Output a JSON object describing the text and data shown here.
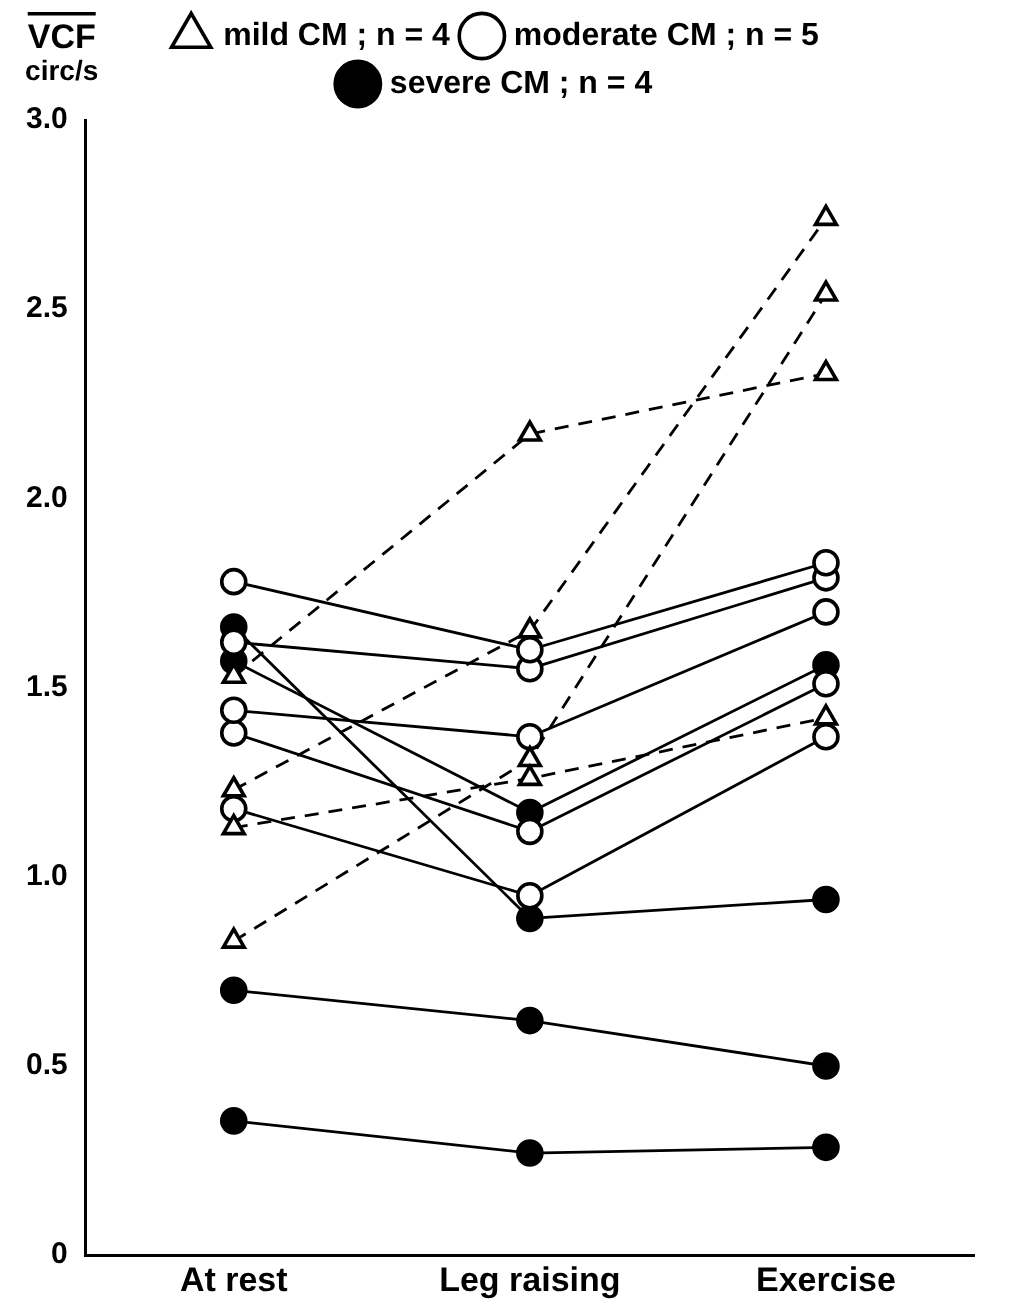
{
  "chart_data": {
    "type": "line",
    "ylabel": "VCF circ/s",
    "categories": [
      "At rest",
      "Leg raising",
      "Exercise"
    ],
    "ylim": [
      0,
      3.0
    ],
    "yticks": [
      0,
      {
        "value": 0.5,
        "label": "0.5"
      },
      {
        "value": 1,
        "label": "1.0"
      },
      {
        "value": 1.5,
        "label": "1.5"
      },
      {
        "value": 2,
        "label": "2.0"
      },
      {
        "value": 2.5,
        "label": "2.5"
      },
      {
        "value": 3,
        "label": "3.0"
      }
    ],
    "grid": false,
    "legend": "top",
    "series": [
      {
        "name": "mild CM ; n = 4",
        "color": "#000000",
        "colors": [
          "#ffffff",
          "#ffffff",
          "#ffffff"
        ],
        "marker": "triangle",
        "line_style": "dashed",
        "values": [
          1.53,
          2.17,
          2.33
        ]
      },
      {
        "color": "#000000",
        "colors": [
          "#ffffff",
          "#ffffff",
          "#ffffff"
        ],
        "marker": "triangle",
        "line_style": "dashed",
        "values": [
          1.23,
          1.65,
          2.74
        ]
      },
      {
        "color": "#000000",
        "colors": [
          "#ffffff",
          "#ffffff",
          "#ffffff"
        ],
        "marker": "triangle",
        "line_style": "dashed",
        "values": [
          1.13,
          1.26,
          1.42
        ]
      },
      {
        "color": "#000000",
        "colors": [
          "#ffffff",
          "#ffffff",
          "#ffffff"
        ],
        "marker": "triangle",
        "line_style": "dashed",
        "values": [
          0.83,
          1.31,
          2.54
        ]
      },
      {
        "name": "moderate CM ; n = 5",
        "color": "#000000",
        "colors": [
          "#ffffff",
          "#ffffff",
          "#ffffff"
        ],
        "marker": "circle",
        "line_style": "solid",
        "values": [
          1.78,
          1.6,
          1.83
        ]
      },
      {
        "color": "#000000",
        "colors": [
          "#ffffff",
          "#ffffff",
          "#ffffff"
        ],
        "marker": "circle",
        "line_style": "solid",
        "values": [
          1.62,
          1.55,
          1.79
        ]
      },
      {
        "color": "#000000",
        "colors": [
          "#ffffff",
          "#ffffff",
          "#ffffff"
        ],
        "marker": "circle",
        "line_style": "solid",
        "values": [
          1.44,
          1.37,
          1.7
        ]
      },
      {
        "color": "#000000",
        "colors": [
          "#ffffff",
          "#ffffff",
          "#ffffff"
        ],
        "marker": "circle",
        "line_style": "solid",
        "values": [
          1.38,
          1.12,
          1.51
        ]
      },
      {
        "color": "#000000",
        "colors": [
          "#ffffff",
          "#ffffff",
          "#ffffff"
        ],
        "marker": "circle",
        "line_style": "solid",
        "values": [
          1.18,
          0.95,
          1.37
        ]
      },
      {
        "name": "severe CM ; n = 4",
        "color": "#000000",
        "marker": "circle",
        "line_style": "solid",
        "values": [
          1.66,
          0.89,
          0.94
        ]
      },
      {
        "color": "#000000",
        "marker": "circle",
        "line_style": "solid",
        "values": [
          1.57,
          1.17,
          1.56
        ]
      },
      {
        "color": "#000000",
        "marker": "circle",
        "line_style": "solid",
        "values": [
          0.7,
          0.62,
          0.5
        ]
      },
      {
        "color": "#000000",
        "marker": "circle",
        "line_style": "solid",
        "values": [
          0.355,
          0.27,
          0.285
        ]
      }
    ]
  }
}
